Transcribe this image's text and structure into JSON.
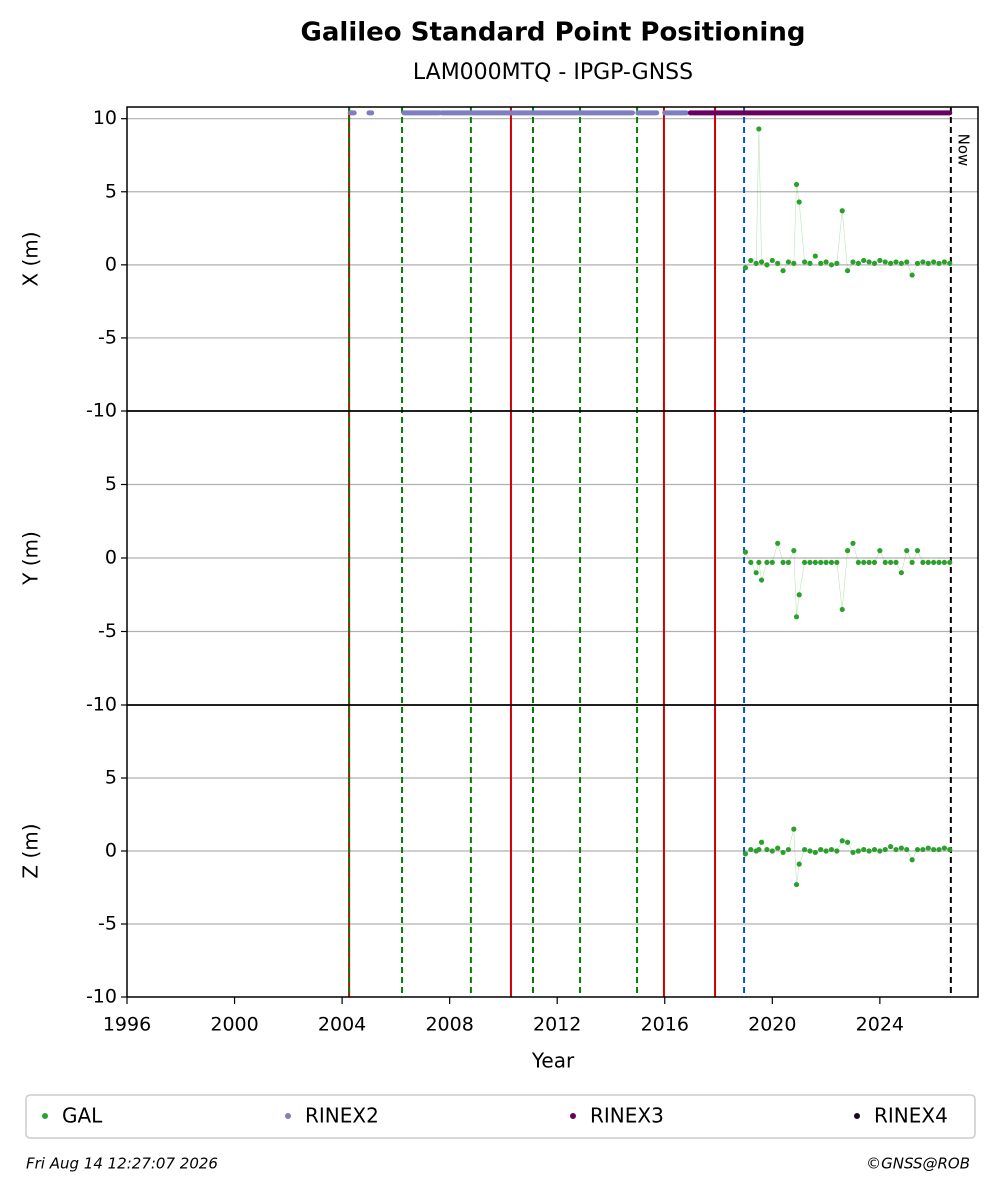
{
  "chart_data": {
    "type": "scatter",
    "title": "Galileo Standard Point Positioning",
    "subtitle": "LAM000MTQ - IPGP-GNSS",
    "xlabel": "Year",
    "xlim": [
      1996,
      2027.65
    ],
    "xticks": [
      1996,
      2000,
      2004,
      2008,
      2012,
      2016,
      2020,
      2024
    ],
    "grid": true,
    "legend": "bottom",
    "panels": [
      {
        "ylabel": "X (m)",
        "ylim": [
          -10,
          10.8
        ],
        "yticks": [
          -10,
          -5,
          0,
          5,
          10
        ]
      },
      {
        "ylabel": "Y (m)",
        "ylim": [
          -10,
          10
        ],
        "yticks": [
          -10,
          -5,
          0,
          5
        ]
      },
      {
        "ylabel": "Z (m)",
        "ylim": [
          -10,
          10
        ],
        "yticks": [
          -10,
          -5,
          0,
          5
        ]
      }
    ],
    "series": [
      {
        "name": "GAL",
        "color": "#2ca02c",
        "x": [
          2019.0,
          2019.2,
          2019.4,
          2019.5,
          2019.6,
          2019.8,
          2020.0,
          2020.2,
          2020.4,
          2020.6,
          2020.8,
          2020.9,
          2021.0,
          2021.2,
          2021.4,
          2021.6,
          2021.8,
          2022.0,
          2022.2,
          2022.4,
          2022.6,
          2022.8,
          2023.0,
          2023.2,
          2023.4,
          2023.6,
          2023.8,
          2024.0,
          2024.2,
          2024.4,
          2024.6,
          2024.8,
          2025.0,
          2025.2,
          2025.4,
          2025.6,
          2025.8,
          2026.0,
          2026.2,
          2026.4,
          2026.6
        ],
        "values": [
          [
            -0.2,
            0.3,
            0.1,
            9.3,
            0.2,
            0.0,
            0.3,
            0.1,
            -0.4,
            0.2,
            0.1,
            5.5,
            4.3,
            0.2,
            0.1,
            0.6,
            0.1,
            0.2,
            0.0,
            0.1,
            3.7,
            -0.4,
            0.2,
            0.1,
            0.3,
            0.2,
            0.1,
            0.3,
            0.2,
            0.1,
            0.2,
            0.1,
            0.2,
            -0.7,
            0.1,
            0.2,
            0.1,
            0.2,
            0.1,
            0.2,
            0.1
          ],
          [
            0.4,
            -0.3,
            -1.0,
            -0.3,
            -1.5,
            -0.3,
            -0.3,
            1.0,
            -0.3,
            -0.3,
            0.5,
            -4.0,
            -2.5,
            -0.3,
            -0.3,
            -0.3,
            -0.3,
            -0.3,
            -0.3,
            -0.3,
            -3.5,
            0.5,
            1.0,
            -0.3,
            -0.3,
            -0.3,
            -0.3,
            0.5,
            -0.3,
            -0.3,
            -0.3,
            -1.0,
            0.5,
            -0.3,
            0.5,
            -0.3,
            -0.3,
            -0.3,
            -0.3,
            -0.3,
            -0.3
          ],
          [
            -0.2,
            0.1,
            0.0,
            0.1,
            0.6,
            0.1,
            0.0,
            0.2,
            -0.1,
            0.1,
            1.5,
            -2.3,
            -0.9,
            0.1,
            0.0,
            -0.1,
            0.1,
            0.0,
            0.1,
            0.0,
            0.7,
            0.6,
            -0.1,
            0.0,
            0.1,
            0.0,
            0.1,
            0.0,
            0.1,
            0.3,
            0.1,
            0.2,
            0.1,
            -0.6,
            0.1,
            0.1,
            0.2,
            0.1,
            0.1,
            0.2,
            0.1
          ]
        ]
      },
      {
        "name": "RINEX2",
        "color": "#7f7fbf",
        "y": 10.4,
        "spans": [
          [
            2004.3,
            2004.45
          ],
          [
            2005.0,
            2005.1
          ],
          [
            2006.3,
            2007.6
          ],
          [
            2007.7,
            2014.8
          ],
          [
            2015.0,
            2015.7
          ],
          [
            2016.0,
            2016.8
          ]
        ]
      },
      {
        "name": "RINEX3",
        "color": "#6a0060",
        "y": 10.4,
        "spans": [
          [
            2016.95,
            2026.6
          ]
        ]
      },
      {
        "name": "RINEX4",
        "color": "#1a0a1a"
      }
    ],
    "events": [
      {
        "x": 2004.26,
        "color": "#cc0000",
        "dashed": false
      },
      {
        "x": 2004.26,
        "color": "#008000",
        "dashed": true
      },
      {
        "x": 2006.23,
        "color": "#008000",
        "dashed": true
      },
      {
        "x": 2008.79,
        "color": "#008000",
        "dashed": true
      },
      {
        "x": 2010.28,
        "color": "#cc0000",
        "dashed": false
      },
      {
        "x": 2011.1,
        "color": "#008000",
        "dashed": true
      },
      {
        "x": 2012.85,
        "color": "#008000",
        "dashed": true
      },
      {
        "x": 2014.97,
        "color": "#008000",
        "dashed": true
      },
      {
        "x": 2015.97,
        "color": "#cc0000",
        "dashed": false
      },
      {
        "x": 2017.87,
        "color": "#cc0000",
        "dashed": false
      },
      {
        "x": 2018.95,
        "color": "#0055cc",
        "dashed": true
      }
    ],
    "now": {
      "x": 2026.64,
      "label": "Now"
    },
    "footer_left": "Fri Aug 14 12:27:07 2026",
    "footer_right": "©GNSS@ROB"
  }
}
